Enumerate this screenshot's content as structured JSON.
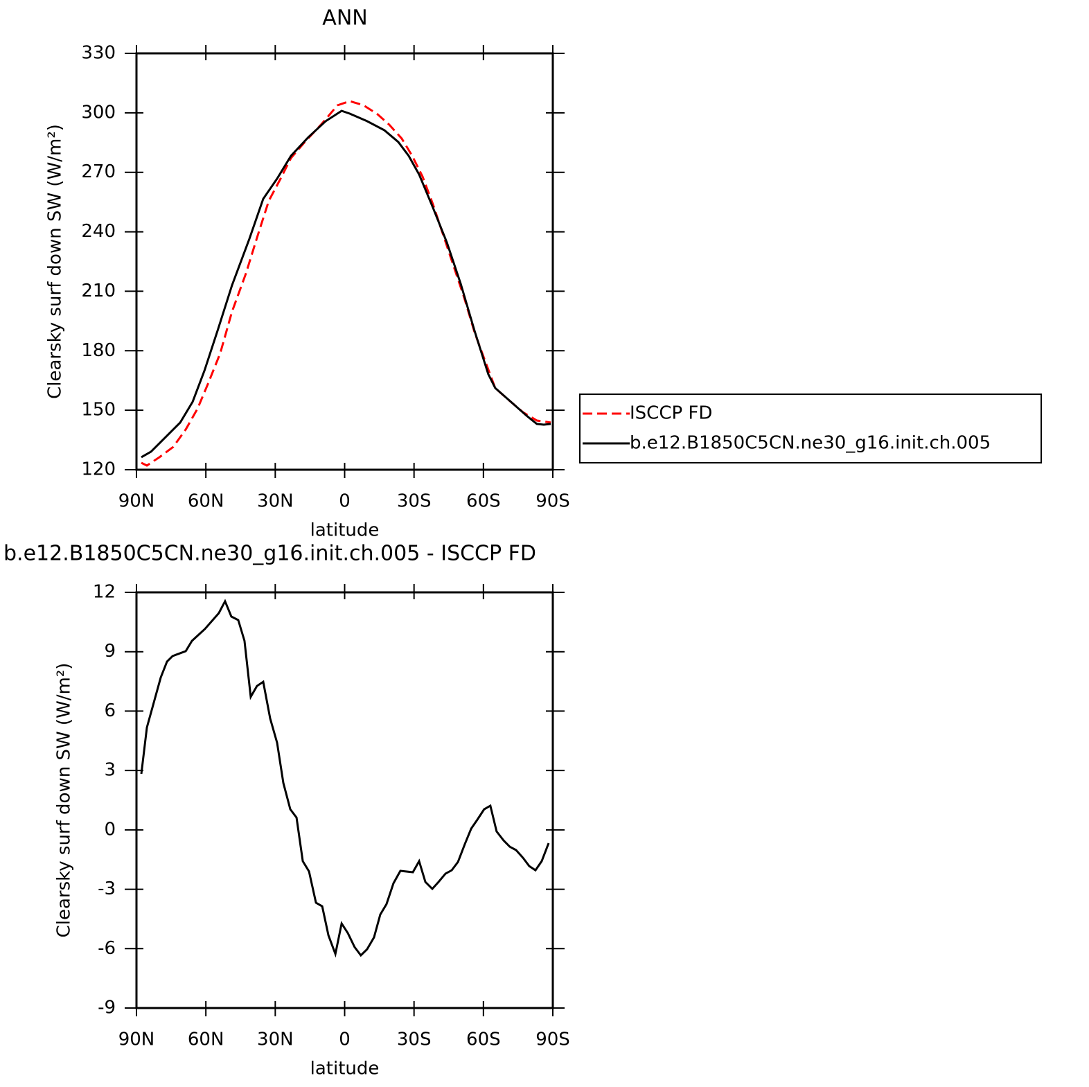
{
  "chart_data": [
    {
      "type": "line",
      "title": "ANN",
      "xlabel": "latitude",
      "ylabel": "Clearsky surf down SW (W/m²)",
      "xlim": [
        90,
        -90
      ],
      "xticks": [
        {
          "value": 90,
          "label": "90N"
        },
        {
          "value": 60,
          "label": "60N"
        },
        {
          "value": 30,
          "label": "30N"
        },
        0,
        {
          "value": -30,
          "label": "30S"
        },
        {
          "value": -60,
          "label": "60S"
        },
        {
          "value": -90,
          "label": "90S"
        }
      ],
      "ylim": [
        120,
        330
      ],
      "yticks": [
        120,
        150,
        180,
        210,
        240,
        270,
        300,
        330
      ],
      "legend": "right",
      "series": [
        {
          "name": "ISCCP FD",
          "color": "#ff0000",
          "dash": true,
          "x": [
            87.9,
            85.5,
            80.1,
            74.1,
            68.7,
            63.6,
            59.2,
            53.8,
            48.7,
            42.7,
            37.6,
            32.8,
            27.7,
            23.2,
            17.2,
            9.7,
            3.1,
            -2.2,
            -8.2,
            -14.2,
            -19.3,
            -24.7,
            -29.2,
            -33.7,
            -38.2,
            -42.7,
            -47.2,
            -51.7,
            -56.2,
            -60.6,
            -65.1,
            -71.1,
            -77.1,
            -83.1,
            -89.1
          ],
          "values": [
            123.5,
            122.1,
            126.3,
            131.5,
            140.3,
            150.8,
            163.0,
            178.7,
            199.7,
            218.9,
            238.1,
            255.6,
            266.8,
            277.2,
            285.3,
            294.7,
            303.8,
            305.9,
            303.8,
            299.3,
            294.0,
            287.0,
            278.3,
            267.8,
            253.8,
            238.1,
            222.4,
            206.7,
            189.2,
            175.2,
            161.2,
            155.0,
            149.0,
            144.8,
            143.8
          ]
        },
        {
          "name": "b.e12.B1850C5CN.ne30_g16.init.ch.005",
          "color": "#000000",
          "dash": false,
          "x": [
            87.9,
            83.7,
            77.1,
            71.1,
            65.7,
            60.6,
            54.7,
            48.7,
            41.2,
            35.2,
            29.2,
            23.2,
            15.7,
            8.2,
            1.3,
            -2.2,
            -9.7,
            -17.2,
            -23.2,
            -27.7,
            -32.2,
            -38.2,
            -44.2,
            -50.2,
            -56.2,
            -62.1,
            -65.1,
            -72.6,
            -78.6,
            -83.1,
            -86.1,
            -89.1
          ],
          "values": [
            126.3,
            129.1,
            136.8,
            143.8,
            154.3,
            170.0,
            191.0,
            213.0,
            236.4,
            256.6,
            266.8,
            278.3,
            287.7,
            295.8,
            301.0,
            299.6,
            295.8,
            291.2,
            285.3,
            278.3,
            268.9,
            252.1,
            234.6,
            213.7,
            189.9,
            168.2,
            161.2,
            153.5,
            147.3,
            143.1,
            142.7,
            143.1
          ]
        }
      ]
    },
    {
      "type": "line",
      "title": "b.e12.B1850C5CN.ne30_g16.init.ch.005 - ISCCP FD",
      "xlabel": "latitude",
      "ylabel": "Clearsky surf down SW (W/m²)",
      "xlim": [
        90,
        -90
      ],
      "xticks": [
        {
          "value": 90,
          "label": "90N"
        },
        {
          "value": 60,
          "label": "60N"
        },
        {
          "value": 30,
          "label": "30N"
        },
        0,
        {
          "value": -30,
          "label": "30S"
        },
        {
          "value": -60,
          "label": "60S"
        },
        {
          "value": -90,
          "label": "90S"
        }
      ],
      "ylim": [
        -9,
        12
      ],
      "yticks": [
        -9,
        -6,
        -3,
        0,
        3,
        6,
        9,
        12
      ],
      "x": [
        87.9,
        85.5,
        79.5,
        76.8,
        74.4,
        68.7,
        66.0,
        60.4,
        54.4,
        51.7,
        49.0,
        46.0,
        43.3,
        40.6,
        37.9,
        35.2,
        32.2,
        29.2,
        26.5,
        23.5,
        20.8,
        18.1,
        15.4,
        12.4,
        9.7,
        7.0,
        4.0,
        1.3,
        -1.4,
        -4.3,
        -7.0,
        -9.7,
        -12.7,
        -15.4,
        -18.1,
        -21.1,
        -24.1,
        -29.5,
        -32.2,
        -34.9,
        -37.9,
        -40.6,
        -43.6,
        -46.3,
        -49.0,
        -52.0,
        -54.7,
        -57.4,
        -60.3,
        -63.0,
        -65.7,
        -68.7,
        -71.4,
        -74.1,
        -77.1,
        -79.8,
        -82.5,
        -85.2,
        -88.2
      ],
      "series": [
        {
          "color": "#000000",
          "dash": false,
          "values": [
            2.83,
            5.17,
            7.7,
            8.5,
            8.78,
            9.03,
            9.55,
            10.15,
            10.95,
            11.55,
            10.78,
            10.6,
            9.55,
            6.72,
            7.27,
            7.48,
            5.63,
            4.4,
            2.37,
            1.04,
            0.62,
            -1.58,
            -2.1,
            -3.68,
            -3.86,
            -5.33,
            -6.27,
            -4.73,
            -5.22,
            -5.92,
            -6.34,
            -6.03,
            -5.43,
            -4.28,
            -3.75,
            -2.7,
            -2.07,
            -2.14,
            -1.58,
            -2.63,
            -2.98,
            -2.63,
            -2.21,
            -2.04,
            -1.62,
            -0.71,
            0.06,
            0.52,
            1.04,
            1.22,
            -0.08,
            -0.53,
            -0.85,
            -1.02,
            -1.41,
            -1.83,
            -2.04,
            -1.58,
            -0.67
          ]
        }
      ]
    }
  ]
}
